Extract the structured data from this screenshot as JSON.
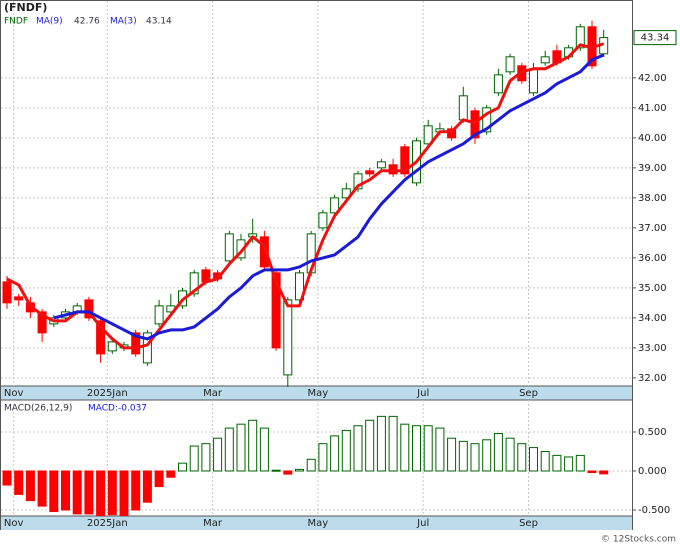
{
  "chart_data": [
    {
      "type": "candlestick",
      "title": "(FNDF)",
      "symbol": "FNDF",
      "categories": [
        null,
        "Nov",
        null,
        null,
        null,
        null,
        null,
        null,
        null,
        "2025Jan",
        null,
        null,
        null,
        null,
        null,
        null,
        null,
        null,
        "Mar",
        null,
        null,
        null,
        null,
        null,
        null,
        null,
        null,
        "May",
        null,
        null,
        null,
        null,
        null,
        null,
        null,
        null,
        "Jul",
        null,
        null,
        null,
        null,
        null,
        null,
        null,
        null,
        "Sep",
        null,
        null,
        null,
        null,
        null,
        null
      ],
      "open": [
        35.2,
        34.7,
        34.5,
        34.2,
        33.8,
        34.0,
        34.2,
        34.6,
        33.9,
        32.9,
        33.0,
        33.5,
        32.5,
        33.8,
        34.2,
        34.4,
        34.8,
        35.6,
        35.5,
        35.9,
        36.0,
        36.7,
        36.7,
        35.5,
        32.1,
        34.6,
        35.5,
        37.0,
        37.5,
        38.0,
        38.3,
        38.9,
        39.0,
        39.1,
        39.7,
        38.5,
        39.8,
        40.2,
        40.3,
        40.6,
        40.9,
        40.2,
        41.5,
        42.2,
        42.4,
        41.5,
        42.5,
        42.9,
        42.7,
        43.0,
        43.7,
        42.8
      ],
      "high": [
        35.4,
        34.8,
        34.7,
        34.3,
        34.1,
        34.3,
        34.5,
        34.7,
        34.0,
        33.3,
        33.2,
        33.6,
        33.6,
        34.6,
        34.8,
        35.0,
        35.6,
        35.7,
        35.6,
        36.9,
        36.8,
        37.3,
        36.9,
        35.6,
        34.7,
        35.6,
        36.9,
        37.6,
        38.1,
        38.5,
        38.9,
        39.0,
        39.3,
        39.3,
        39.8,
        40.0,
        40.6,
        40.5,
        40.4,
        41.7,
        41.0,
        41.1,
        42.3,
        42.8,
        42.5,
        42.5,
        42.9,
        43.1,
        43.1,
        43.8,
        43.9,
        43.6
      ],
      "low": [
        34.3,
        34.4,
        34.0,
        33.2,
        33.7,
        33.9,
        34.1,
        33.9,
        32.5,
        32.8,
        32.9,
        32.7,
        32.4,
        33.7,
        34.1,
        34.3,
        34.7,
        35.1,
        35.2,
        35.8,
        35.9,
        36.5,
        35.6,
        32.9,
        31.7,
        34.5,
        35.4,
        36.9,
        37.4,
        37.9,
        38.2,
        38.7,
        38.9,
        38.7,
        38.7,
        38.4,
        39.7,
        40.1,
        39.9,
        40.5,
        39.8,
        40.1,
        41.4,
        42.1,
        41.8,
        41.4,
        42.4,
        42.4,
        42.6,
        42.9,
        42.3,
        42.7
      ],
      "close": [
        34.5,
        34.6,
        34.2,
        33.5,
        34.0,
        34.2,
        34.4,
        34.0,
        32.8,
        33.2,
        33.1,
        32.8,
        33.5,
        34.4,
        34.4,
        34.9,
        35.5,
        35.2,
        35.3,
        36.8,
        36.6,
        36.8,
        35.7,
        33.0,
        34.6,
        35.5,
        36.8,
        37.5,
        38.0,
        38.3,
        38.8,
        38.8,
        39.2,
        38.8,
        38.8,
        39.9,
        40.4,
        40.3,
        40.0,
        41.4,
        40.0,
        41.0,
        42.1,
        42.7,
        41.9,
        42.3,
        42.7,
        42.5,
        43.0,
        43.7,
        42.4,
        43.34
      ],
      "up_color": "#006400",
      "down_color": "#ff0000",
      "series": [
        {
          "name": "MA(9)",
          "color": "#1a1ad8",
          "last": 42.76,
          "values": [
            null,
            null,
            null,
            null,
            34.0,
            34.1,
            34.2,
            34.2,
            34.0,
            33.8,
            33.6,
            33.4,
            33.3,
            33.5,
            33.6,
            33.6,
            33.7,
            34.0,
            34.3,
            34.7,
            35.0,
            35.4,
            35.6,
            35.6,
            35.6,
            35.7,
            35.9,
            36.0,
            36.1,
            36.4,
            36.7,
            37.3,
            37.8,
            38.2,
            38.6,
            38.9,
            39.2,
            39.4,
            39.6,
            39.8,
            40.1,
            40.3,
            40.6,
            40.9,
            41.1,
            41.3,
            41.5,
            41.8,
            42.0,
            42.2,
            42.6,
            42.76
          ]
        },
        {
          "name": "MA(3)",
          "color": "#ee1111",
          "last": 43.14,
          "values": [
            35.3,
            35.1,
            34.4,
            34.1,
            33.9,
            33.9,
            34.2,
            34.2,
            33.7,
            33.3,
            33.0,
            33.0,
            33.1,
            33.6,
            34.1,
            34.6,
            34.9,
            35.2,
            35.3,
            35.8,
            36.2,
            36.7,
            36.4,
            35.2,
            34.4,
            34.4,
            35.6,
            36.6,
            37.4,
            37.9,
            38.4,
            38.6,
            38.9,
            38.9,
            38.9,
            39.2,
            39.7,
            40.2,
            40.2,
            40.6,
            40.5,
            40.8,
            41.0,
            41.9,
            42.2,
            42.3,
            42.3,
            42.5,
            42.7,
            43.1,
            43.0,
            43.14
          ]
        }
      ],
      "ylim": [
        31.73,
        44.56
      ],
      "yticks": [
        {
          "value": 32,
          "label": "32.00"
        },
        {
          "value": 33,
          "label": "33.00"
        },
        {
          "value": 34,
          "label": "34.00"
        },
        {
          "value": 35,
          "label": "35.00"
        },
        {
          "value": 36,
          "label": "36.00"
        },
        {
          "value": 37,
          "label": "37.00"
        },
        {
          "value": 38,
          "label": "38.00"
        },
        {
          "value": 39,
          "label": "39.00"
        },
        {
          "value": 40,
          "label": "40.00"
        },
        {
          "value": 41,
          "label": "41.00"
        },
        {
          "value": 42,
          "label": "42.00"
        }
      ],
      "grid": true
    },
    {
      "type": "bar",
      "title": "MACD(26,12,9)",
      "subtitle": "MACD:-0.037",
      "categories": [
        null,
        "Nov",
        null,
        null,
        null,
        null,
        null,
        null,
        null,
        "2025Jan",
        null,
        null,
        null,
        null,
        null,
        null,
        null,
        null,
        "Mar",
        null,
        null,
        null,
        null,
        null,
        null,
        null,
        null,
        "May",
        null,
        null,
        null,
        null,
        null,
        null,
        null,
        null,
        "Jul",
        null,
        null,
        null,
        null,
        null,
        null,
        null,
        null,
        "Sep",
        null,
        null,
        null,
        null,
        null,
        null
      ],
      "values": [
        -0.18,
        -0.3,
        -0.38,
        -0.45,
        -0.52,
        -0.5,
        -0.55,
        -0.55,
        -0.57,
        -0.56,
        -0.57,
        -0.5,
        -0.4,
        -0.2,
        -0.08,
        0.1,
        0.32,
        0.35,
        0.42,
        0.55,
        0.6,
        0.65,
        0.55,
        0.01,
        -0.04,
        0.02,
        0.15,
        0.35,
        0.45,
        0.52,
        0.58,
        0.65,
        0.7,
        0.7,
        0.6,
        0.58,
        0.58,
        0.55,
        0.42,
        0.38,
        0.35,
        0.4,
        0.48,
        0.42,
        0.35,
        0.3,
        0.25,
        0.2,
        0.18,
        0.2,
        -0.02,
        -0.037
      ],
      "pos_color": "#006400",
      "neg_color": "#ff0000",
      "ylim": [
        -0.577,
        0.91
      ],
      "yticks": [
        {
          "value": 0.5,
          "label": "0.500"
        },
        {
          "value": 0,
          "label": "0.000"
        },
        {
          "value": -0.5,
          "label": "-0.500"
        }
      ],
      "grid": true
    }
  ],
  "footer": "© 12Stocks.com"
}
